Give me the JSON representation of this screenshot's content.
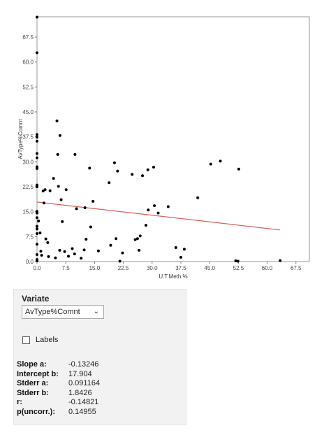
{
  "chart_data": {
    "type": "scatter",
    "xlabel": "U.T.Meth.%",
    "ylabel": "AvType%Comnt",
    "xlim": [
      0,
      71
    ],
    "ylim": [
      0,
      73.6
    ],
    "xticks": [
      "0.0",
      "7.5",
      "15.0",
      "22.5",
      "30.0",
      "37.5",
      "45.0",
      "52.5",
      "60.0",
      "67.5"
    ],
    "yticks": [
      "0.0",
      "7.5",
      "15.0",
      "22.5",
      "30.0",
      "37.5",
      "45.0",
      "52.5",
      "60.0",
      "67.5"
    ],
    "points": [
      [
        0,
        73.5
      ],
      [
        0,
        62.8
      ],
      [
        0,
        38.2
      ],
      [
        0,
        37.4
      ],
      [
        0,
        36.2
      ],
      [
        0,
        32.5
      ],
      [
        0,
        31.2
      ],
      [
        0,
        28.5
      ],
      [
        0,
        28.0
      ],
      [
        0,
        23.0
      ],
      [
        0,
        22.5
      ],
      [
        0,
        15.1
      ],
      [
        0,
        14.6
      ],
      [
        0,
        13.2
      ],
      [
        0,
        10.6
      ],
      [
        0,
        9.8
      ],
      [
        0,
        8.4
      ],
      [
        0,
        5.2
      ],
      [
        0,
        2.1
      ],
      [
        0,
        0.6
      ],
      [
        0,
        0.2
      ],
      [
        0.4,
        12.2
      ],
      [
        0.8,
        8.6
      ],
      [
        1.0,
        3.1
      ],
      [
        1.2,
        1.9
      ],
      [
        1.6,
        21.2
      ],
      [
        1.8,
        17.6
      ],
      [
        2.1,
        21.6
      ],
      [
        2.3,
        6.8
      ],
      [
        2.8,
        5.7
      ],
      [
        3.0,
        1.5
      ],
      [
        3.4,
        21.3
      ],
      [
        4.3,
        25.0
      ],
      [
        4.8,
        1.1
      ],
      [
        5.2,
        42.3
      ],
      [
        5.4,
        32.2
      ],
      [
        5.6,
        22.6
      ],
      [
        5.9,
        3.4
      ],
      [
        6.0,
        37.9
      ],
      [
        6.3,
        18.6
      ],
      [
        6.6,
        12.0
      ],
      [
        7.2,
        3.0
      ],
      [
        7.6,
        21.6
      ],
      [
        8.2,
        1.6
      ],
      [
        9.2,
        3.9
      ],
      [
        9.8,
        2.3
      ],
      [
        9.9,
        32.2
      ],
      [
        10.3,
        15.9
      ],
      [
        11.5,
        1.0
      ],
      [
        12.3,
        3.5
      ],
      [
        12.5,
        16.2
      ],
      [
        12.8,
        6.7
      ],
      [
        13.7,
        28.1
      ],
      [
        14.0,
        10.4
      ],
      [
        14.6,
        18.1
      ],
      [
        16.0,
        3.2
      ],
      [
        18.8,
        23.7
      ],
      [
        19.2,
        4.9
      ],
      [
        20.2,
        29.7
      ],
      [
        20.6,
        6.9
      ],
      [
        21.0,
        27.2
      ],
      [
        21.6,
        0.1
      ],
      [
        22.3,
        2.6
      ],
      [
        24.8,
        26.2
      ],
      [
        25.6,
        6.6
      ],
      [
        26.2,
        6.9
      ],
      [
        26.6,
        3.4
      ],
      [
        26.9,
        7.7
      ],
      [
        27.5,
        25.8
      ],
      [
        28.4,
        10.9
      ],
      [
        28.9,
        27.6
      ],
      [
        29.0,
        15.5
      ],
      [
        30.4,
        28.4
      ],
      [
        30.6,
        16.8
      ],
      [
        31.6,
        14.6
      ],
      [
        34.2,
        16.5
      ],
      [
        36.2,
        4.2
      ],
      [
        37.5,
        1.3
      ],
      [
        38.4,
        3.7
      ],
      [
        41.9,
        19.2
      ],
      [
        45.3,
        29.3
      ],
      [
        47.8,
        30.2
      ],
      [
        51.8,
        0.2
      ],
      [
        52.4,
        0.1
      ],
      [
        52.6,
        27.8
      ],
      [
        63.4,
        0.3
      ]
    ],
    "regression": {
      "slope": -0.13246,
      "intercept": 17.904,
      "x_from": 0,
      "x_to": 63.4,
      "color": "#d9605a"
    },
    "point_color": "#000000",
    "grid": false
  },
  "panel": {
    "variate_label": "Variate",
    "variate_selected": "AvType%Comnt",
    "labels_checkbox_label": "Labels",
    "labels_checked": false,
    "stats": [
      {
        "key": "Slope a:",
        "value": "-0.13246"
      },
      {
        "key": "Intercept b:",
        "value": "17.904"
      },
      {
        "key": "Stderr a:",
        "value": "0.091164"
      },
      {
        "key": "Stderr b:",
        "value": "1.8426"
      },
      {
        "key": "r:",
        "value": "-0.14821"
      },
      {
        "key": "p(uncorr.):",
        "value": "0.14955"
      }
    ]
  }
}
